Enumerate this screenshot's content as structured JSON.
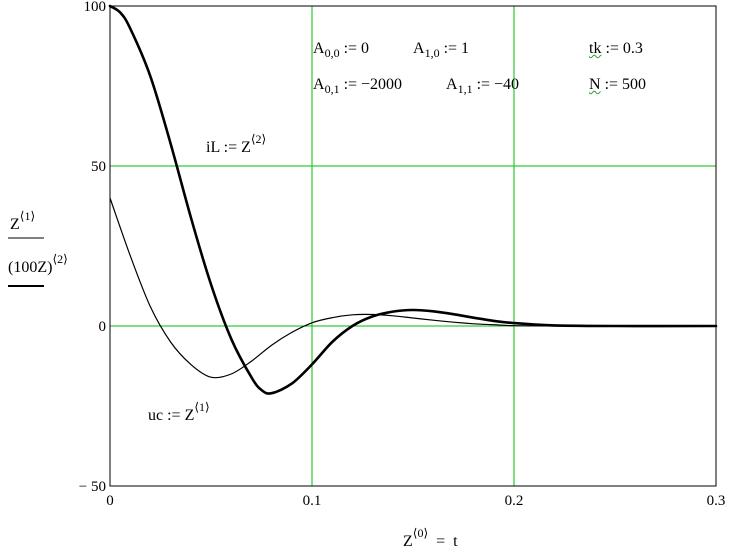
{
  "chart_data": {
    "type": "line",
    "xlim": [
      0,
      0.3
    ],
    "ylim": [
      -50,
      100
    ],
    "x_ticks": [
      0,
      0.1,
      0.2,
      0.3
    ],
    "y_ticks": [
      -50,
      0,
      50,
      100
    ],
    "x_tick_labels": [
      "0",
      "0.1",
      "0.2",
      "0.3"
    ],
    "y_tick_labels": [
      "− 50",
      "0",
      "50",
      "100"
    ],
    "grid": true,
    "grid_color": "#00c000",
    "line_color": "#000000",
    "xlabel": {
      "base": "Z",
      "sup": "⟨0⟩",
      "rest": "  =  t"
    },
    "ylabel": {
      "top": {
        "base": "Z",
        "sup": "⟨1⟩"
      },
      "bottom": {
        "base": "(100Z)",
        "sup": "⟨2⟩"
      }
    },
    "series": [
      {
        "style": "thin",
        "x": [
          0,
          0.01,
          0.02,
          0.03,
          0.04,
          0.05,
          0.06,
          0.07,
          0.08,
          0.09,
          0.1,
          0.11,
          0.12,
          0.13,
          0.14,
          0.15,
          0.16,
          0.17,
          0.18,
          0.19,
          0.2,
          0.22,
          0.25,
          0.3
        ],
        "y": [
          40,
          22,
          6,
          -5,
          -12,
          -16,
          -15,
          -11,
          -6,
          -2,
          1,
          2.6,
          3.5,
          3.6,
          3.2,
          2.5,
          1.8,
          1.2,
          0.7,
          0.4,
          0.1,
          0,
          0,
          0
        ]
      },
      {
        "style": "thick",
        "x": [
          0,
          0.005,
          0.01,
          0.02,
          0.03,
          0.04,
          0.05,
          0.06,
          0.07,
          0.075,
          0.08,
          0.09,
          0.1,
          0.11,
          0.12,
          0.13,
          0.14,
          0.15,
          0.16,
          0.17,
          0.18,
          0.19,
          0.2,
          0.22,
          0.25,
          0.3
        ],
        "y": [
          100,
          98,
          93,
          78,
          57,
          34,
          13,
          -4,
          -16,
          -20,
          -21,
          -18,
          -12,
          -5,
          0,
          3,
          4.5,
          5,
          4.6,
          3.7,
          2.6,
          1.6,
          0.9,
          0.2,
          0,
          0
        ]
      }
    ],
    "annotations": [
      {
        "lhs": "iL",
        "op": " := ",
        "base": "Z",
        "sup": "⟨2⟩"
      },
      {
        "lhs": "uc",
        "op": " := ",
        "base": "Z",
        "sup": "⟨1⟩"
      }
    ]
  },
  "definitions": {
    "row1": [
      {
        "base": "A",
        "sub": "0,0",
        "rest": " := 0"
      },
      {
        "base": "A",
        "sub": "1,0",
        "rest": " := 1"
      }
    ],
    "row2": [
      {
        "base": "A",
        "sub": "0,1",
        "rest": " := −2000"
      },
      {
        "base": "A",
        "sub": "1,1",
        "rest": " := −40"
      }
    ],
    "tk": {
      "name": "tk",
      "rest": " := 0.3"
    },
    "N": {
      "name": "N",
      "rest": " := 500"
    }
  }
}
